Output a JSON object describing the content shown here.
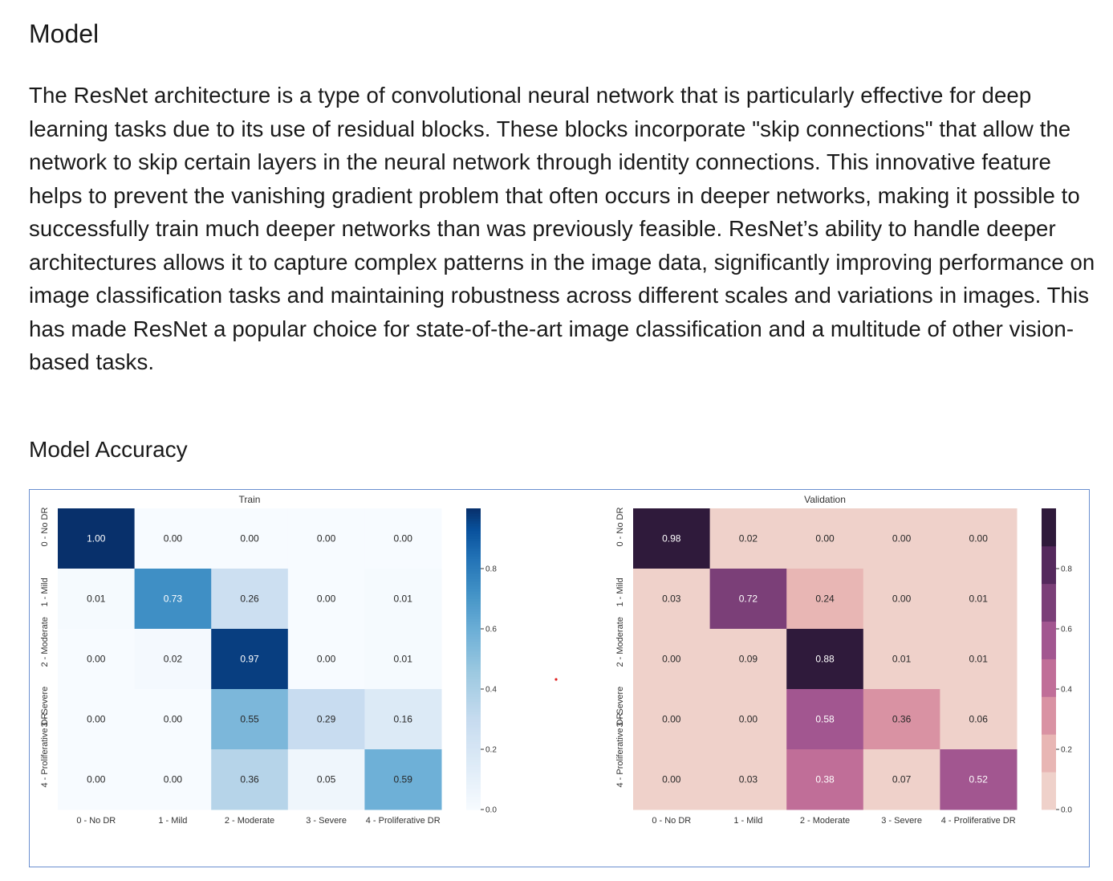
{
  "heading": "Model",
  "paragraph": "The ResNet architecture is a type of convolutional neural network that is particularly effective for deep learning tasks due to its use of residual blocks. These blocks incorporate \"skip connections\" that allow the network to skip certain layers in the neural network through identity connections. This innovative feature helps to prevent the vanishing gradient problem that often occurs in deeper networks, making it possible to successfully train much deeper networks than was previously feasible. ResNet’s ability to handle deeper architectures allows it to capture complex patterns in the image data, significantly improving performance on image classification tasks and maintaining robustness across different scales and variations in images. This has made ResNet a popular choice for state-of-the-art image classification and a multitude of other vision-based tasks.",
  "subheading": "Model Accuracy",
  "chart_data": [
    {
      "type": "heatmap",
      "title": "Train",
      "colormap": "Blues",
      "x_labels": [
        "0 - No DR",
        "1 - Mild",
        "2 - Moderate",
        "3 - Severe",
        "4 - Proliferative DR"
      ],
      "y_labels": [
        "0 - No DR",
        "1 - Mild",
        "2 - Moderate",
        "3 - Severe",
        "4 - Proliferative DR"
      ],
      "values": [
        [
          1.0,
          0.0,
          0.0,
          0.0,
          0.0
        ],
        [
          0.01,
          0.73,
          0.26,
          0.0,
          0.01
        ],
        [
          0.0,
          0.02,
          0.97,
          0.0,
          0.01
        ],
        [
          0.0,
          0.0,
          0.55,
          0.29,
          0.16
        ],
        [
          0.0,
          0.0,
          0.36,
          0.05,
          0.59
        ]
      ],
      "colorbar_ticks": [
        "0.0",
        "0.2",
        "0.4",
        "0.6",
        "0.8"
      ],
      "colorbar_range": [
        0,
        1
      ],
      "colorbar_discrete": false
    },
    {
      "type": "heatmap",
      "title": "Validation",
      "colormap": "cubehelix-pink",
      "x_labels": [
        "0 - No DR",
        "1 - Mild",
        "2 - Moderate",
        "3 - Severe",
        "4 - Proliferative DR"
      ],
      "y_labels": [
        "0 - No DR",
        "1 - Mild",
        "2 - Moderate",
        "3 - Severe",
        "4 - Proliferative DR"
      ],
      "values": [
        [
          0.98,
          0.02,
          0.0,
          0.0,
          0.0
        ],
        [
          0.03,
          0.72,
          0.24,
          0.0,
          0.01
        ],
        [
          0.0,
          0.09,
          0.88,
          0.01,
          0.01
        ],
        [
          0.0,
          0.0,
          0.58,
          0.36,
          0.06
        ],
        [
          0.0,
          0.03,
          0.38,
          0.07,
          0.52
        ]
      ],
      "colorbar_ticks": [
        "0.0",
        "0.2",
        "0.4",
        "0.6",
        "0.8"
      ],
      "colorbar_range": [
        0,
        1
      ],
      "colorbar_discrete": true,
      "palette": [
        "#efd1ca",
        "#e8b6b4",
        "#d992a3",
        "#c06e98",
        "#a25690",
        "#7b3f78",
        "#55295d",
        "#2f1a3b"
      ]
    }
  ]
}
